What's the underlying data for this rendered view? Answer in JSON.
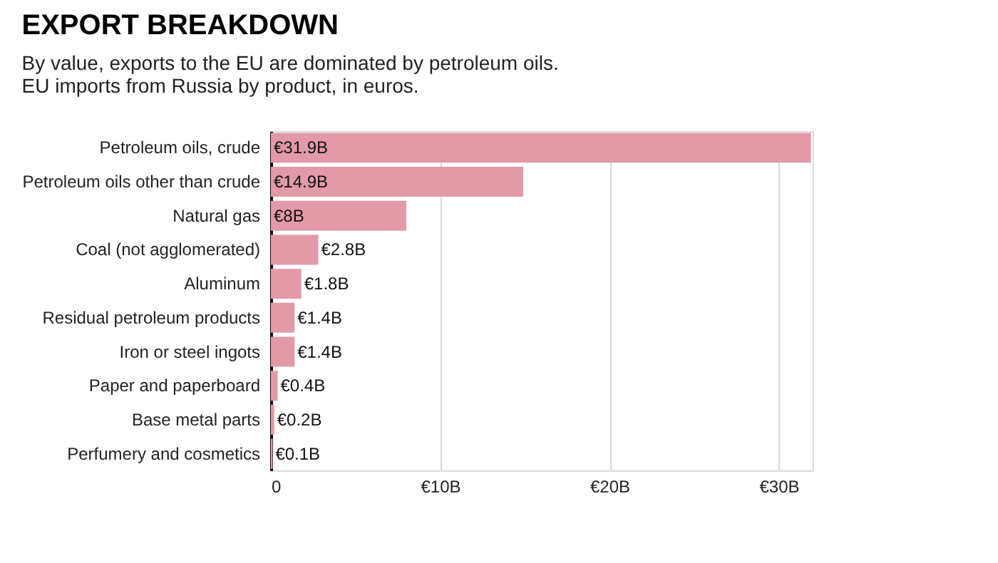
{
  "chart_data": {
    "type": "bar",
    "orientation": "horizontal",
    "title": "EXPORT BREAKDOWN",
    "subtitle": "By value, exports to the EU are dominated by petroleum oils.",
    "annotations": [
      "EU imports from Russia by product, in euros."
    ],
    "categories": [
      "Petroleum oils, crude",
      "Petroleum oils other than crude",
      "Natural gas",
      "Coal (not agglomerated)",
      "Aluminum",
      "Residual petroleum products",
      "Iron or steel ingots",
      "Paper and paperboard",
      "Base metal parts",
      "Perfumery and cosmetics"
    ],
    "values": [
      31.9,
      14.9,
      8,
      2.8,
      1.8,
      1.4,
      1.4,
      0.4,
      0.2,
      0.1
    ],
    "value_labels": [
      "€31.9B",
      "€14.9B",
      "€8B",
      "€2.8B",
      "€1.8B",
      "€1.4B",
      "€1.4B",
      "€0.4B",
      "€0.2B",
      "€0.1B"
    ],
    "color": "#e39aa8",
    "xlim": [
      0,
      32
    ],
    "xticks": [
      0,
      {
        "value": 10,
        "label": "€10B"
      },
      {
        "value": 20,
        "label": "€20B"
      },
      {
        "value": 30,
        "label": "€30B"
      }
    ],
    "grid": "x"
  }
}
